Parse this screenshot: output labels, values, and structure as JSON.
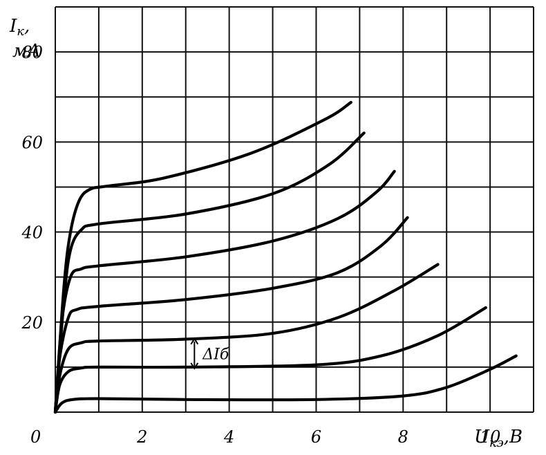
{
  "chart_data": {
    "type": "line",
    "title": "",
    "ylabel": {
      "main": "I",
      "sub": "к",
      "suffix": ",",
      "unit": "мА"
    },
    "xlabel": {
      "main": "U",
      "sub": "кэ",
      "suffix": ",В"
    },
    "xlim": [
      0,
      11
    ],
    "ylim": [
      0,
      90
    ],
    "origin_label": "0",
    "x_tick_labels": [
      "2",
      "4",
      "6",
      "8",
      "10"
    ],
    "y_tick_labels": [
      "20",
      "40",
      "60",
      "80"
    ],
    "grid": true,
    "annotation": {
      "text": "ΔIб",
      "x": 3.2,
      "y_from": 10,
      "y_to": 16
    },
    "series": [
      {
        "points": [
          [
            0,
            0
          ],
          [
            0.15,
            2
          ],
          [
            0.4,
            2.8
          ],
          [
            1,
            3
          ],
          [
            3,
            2.8
          ],
          [
            6,
            2.8
          ],
          [
            8,
            3.6
          ],
          [
            9,
            5.5
          ],
          [
            10,
            9.5
          ],
          [
            10.6,
            12.5
          ]
        ]
      },
      {
        "points": [
          [
            0,
            0
          ],
          [
            0.1,
            6
          ],
          [
            0.3,
            9
          ],
          [
            0.6,
            9.8
          ],
          [
            1,
            10
          ],
          [
            3,
            10
          ],
          [
            6,
            10.5
          ],
          [
            7.5,
            12.5
          ],
          [
            8.8,
            17
          ],
          [
            9.9,
            23.2
          ]
        ]
      },
      {
        "points": [
          [
            0,
            0
          ],
          [
            0.1,
            8
          ],
          [
            0.3,
            14
          ],
          [
            0.6,
            15.4
          ],
          [
            1,
            15.8
          ],
          [
            3,
            16.2
          ],
          [
            5,
            17.5
          ],
          [
            6.5,
            21
          ],
          [
            7.8,
            27
          ],
          [
            8.8,
            32.8
          ]
        ]
      },
      {
        "points": [
          [
            0,
            0
          ],
          [
            0.1,
            12
          ],
          [
            0.3,
            21
          ],
          [
            0.5,
            22.8
          ],
          [
            1,
            23.5
          ],
          [
            3,
            25
          ],
          [
            5,
            27.5
          ],
          [
            6.5,
            31
          ],
          [
            7.5,
            37
          ],
          [
            8.1,
            43.2
          ]
        ]
      },
      {
        "points": [
          [
            0,
            0
          ],
          [
            0.15,
            20
          ],
          [
            0.35,
            30
          ],
          [
            0.6,
            31.8
          ],
          [
            1,
            32.5
          ],
          [
            3,
            34.5
          ],
          [
            5,
            38
          ],
          [
            6.5,
            43
          ],
          [
            7.4,
            49
          ],
          [
            7.8,
            53.5
          ]
        ]
      },
      {
        "points": [
          [
            0,
            0
          ],
          [
            0.2,
            25
          ],
          [
            0.35,
            36
          ],
          [
            0.6,
            40.5
          ],
          [
            1,
            41.8
          ],
          [
            3,
            44
          ],
          [
            5,
            48.5
          ],
          [
            6.3,
            55
          ],
          [
            7.1,
            62
          ]
        ]
      },
      {
        "points": [
          [
            0,
            0
          ],
          [
            0.2,
            28
          ],
          [
            0.35,
            40
          ],
          [
            0.55,
            47
          ],
          [
            0.8,
            49.5
          ],
          [
            1.2,
            50.2
          ],
          [
            2.5,
            52
          ],
          [
            4.5,
            57.5
          ],
          [
            6.2,
            65
          ],
          [
            6.8,
            68.8
          ]
        ]
      }
    ]
  }
}
